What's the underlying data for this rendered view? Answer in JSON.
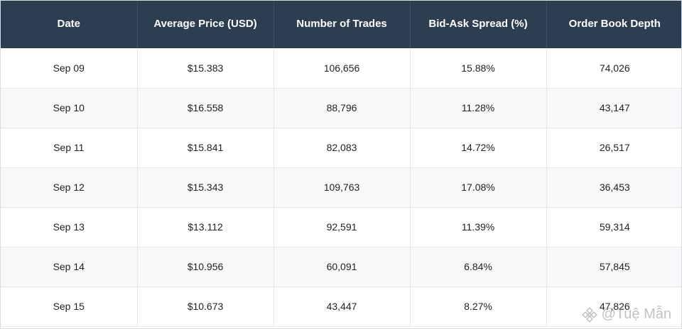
{
  "table": {
    "headers": [
      "Date",
      "Average Price (USD)",
      "Number of Trades",
      "Bid-Ask Spread (%)",
      "Order Book Depth"
    ],
    "rows": [
      [
        "Sep 09",
        "$15.383",
        "106,656",
        "15.88%",
        "74,026"
      ],
      [
        "Sep 10",
        "$16.558",
        "88,796",
        "11.28%",
        "43,147"
      ],
      [
        "Sep 11",
        "$15.841",
        "82,083",
        "14.72%",
        "26,517"
      ],
      [
        "Sep 12",
        "$15.343",
        "109,763",
        "17.08%",
        "36,453"
      ],
      [
        "Sep 13",
        "$13.112",
        "92,591",
        "11.39%",
        "59,314"
      ],
      [
        "Sep 14",
        "$10.956",
        "60,091",
        "6.84%",
        "57,845"
      ],
      [
        "Sep 15",
        "$10.673",
        "43,447",
        "8.27%",
        "47,826"
      ]
    ]
  },
  "chart_data": {
    "type": "table",
    "columns": [
      "Date",
      "Average Price (USD)",
      "Number of Trades",
      "Bid-Ask Spread (%)",
      "Order Book Depth"
    ],
    "rows": [
      {
        "date": "Sep 09",
        "average_price_usd": 15.383,
        "number_of_trades": 106656,
        "bid_ask_spread_pct": 15.88,
        "order_book_depth": 74026
      },
      {
        "date": "Sep 10",
        "average_price_usd": 16.558,
        "number_of_trades": 88796,
        "bid_ask_spread_pct": 11.28,
        "order_book_depth": 43147
      },
      {
        "date": "Sep 11",
        "average_price_usd": 15.841,
        "number_of_trades": 82083,
        "bid_ask_spread_pct": 14.72,
        "order_book_depth": 26517
      },
      {
        "date": "Sep 12",
        "average_price_usd": 15.343,
        "number_of_trades": 109763,
        "bid_ask_spread_pct": 17.08,
        "order_book_depth": 36453
      },
      {
        "date": "Sep 13",
        "average_price_usd": 13.112,
        "number_of_trades": 92591,
        "bid_ask_spread_pct": 11.39,
        "order_book_depth": 59314
      },
      {
        "date": "Sep 14",
        "average_price_usd": 10.956,
        "number_of_trades": 60091,
        "bid_ask_spread_pct": 6.84,
        "order_book_depth": 57845
      },
      {
        "date": "Sep 15",
        "average_price_usd": 10.673,
        "number_of_trades": 43447,
        "bid_ask_spread_pct": 8.27,
        "order_book_depth": 47826
      }
    ]
  },
  "watermark": {
    "text": "@Tuệ Mẫn",
    "logo_icon": "binance-logo-icon"
  },
  "colors": {
    "header_bg": "#2c3e50",
    "header_text": "#ffffff",
    "row_alt_bg": "#f6f8fa"
  }
}
